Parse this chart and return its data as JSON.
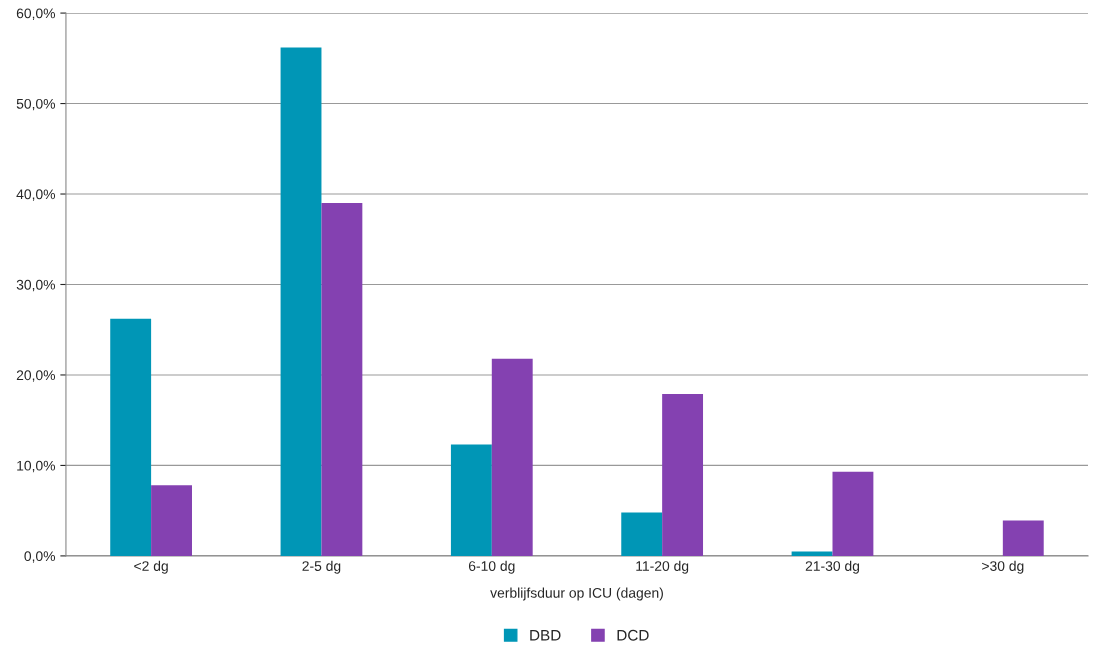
{
  "chart_data": {
    "type": "bar",
    "xlabel": "verblijfsduur op ICU (dagen)",
    "categories": [
      "<2 dg",
      "2-5 dg",
      "6-10 dg",
      "11-20 dg",
      "21-30 dg",
      ">30 dg"
    ],
    "series": [
      {
        "name": "DBD",
        "color": "#0096b6",
        "values": [
          26.2,
          56.2,
          12.3,
          4.8,
          0.5,
          null
        ]
      },
      {
        "name": "DCD",
        "color": "#8441b1",
        "values": [
          7.8,
          39.0,
          21.8,
          17.9,
          9.3,
          3.9
        ]
      }
    ],
    "ylim": [
      0,
      60
    ],
    "yticks": [
      {
        "value": 0,
        "label": "0,0%"
      },
      {
        "value": 10,
        "label": "10,0%"
      },
      {
        "value": 20,
        "label": "20,0%"
      },
      {
        "value": 30,
        "label": "30,0%"
      },
      {
        "value": 40,
        "label": "40,0%"
      },
      {
        "value": 50,
        "label": "50,0%"
      },
      {
        "value": 60,
        "label": "60,0%"
      }
    ],
    "grid": "y",
    "legend": "bottom"
  }
}
